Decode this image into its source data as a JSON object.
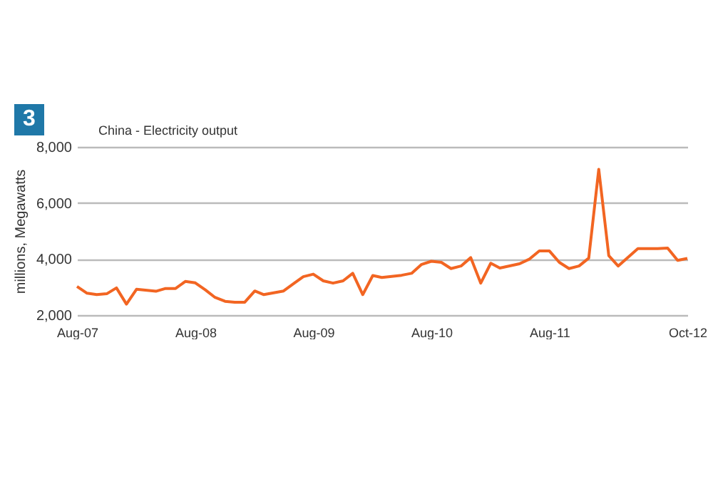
{
  "chart_data": {
    "type": "line",
    "annotations": [
      "3"
    ],
    "ylabel": "millions, Megawatts",
    "x": [
      "2007-08",
      "2007-09",
      "2007-10",
      "2007-11",
      "2007-12",
      "2008-01",
      "2008-02",
      "2008-04",
      "2008-05",
      "2008-06",
      "2008-07",
      "2008-08",
      "2008-09",
      "2008-10",
      "2008-11",
      "2008-12",
      "2009-01",
      "2009-02",
      "2009-03",
      "2009-05",
      "2009-06",
      "2009-07",
      "2009-08",
      "2009-09",
      "2009-10",
      "2009-11",
      "2009-12",
      "2010-01",
      "2010-02",
      "2010-03",
      "2010-05",
      "2010-06",
      "2010-07",
      "2010-08",
      "2010-09",
      "2010-10",
      "2010-11",
      "2010-12",
      "2011-01",
      "2011-02",
      "2011-03",
      "2011-05",
      "2011-06",
      "2011-07",
      "2011-08",
      "2011-09",
      "2011-10",
      "2011-11",
      "2011-12",
      "2012-01",
      "2012-02",
      "2012-03",
      "2012-05",
      "2012-06",
      "2012-07",
      "2012-08",
      "2012-09",
      "2012-10"
    ],
    "series": [
      {
        "name": "China - Electricity output",
        "color": "#f26522",
        "values": [
          3020,
          2780,
          2730,
          2760,
          2970,
          2390,
          2920,
          2850,
          2950,
          2950,
          3200,
          3150,
          2900,
          2630,
          2490,
          2460,
          2460,
          2860,
          2730,
          2860,
          3120,
          3370,
          3460,
          3220,
          3140,
          3220,
          3490,
          2730,
          3410,
          3340,
          3420,
          3490,
          3800,
          3920,
          3880,
          3660,
          3750,
          4050,
          3140,
          3850,
          3680,
          3830,
          4000,
          4290,
          4290,
          3880,
          3660,
          3750,
          4030,
          7200,
          4120,
          3750,
          4370,
          4370,
          4370,
          4390,
          3950,
          4020
        ]
      }
    ],
    "xlim": [
      "2007-08",
      "2012-10"
    ],
    "xticks": [
      {
        "value": "2007-08",
        "label": "Aug-07"
      },
      {
        "value": "2008-08",
        "label": "Aug-08"
      },
      {
        "value": "2009-08",
        "label": "Aug-09"
      },
      {
        "value": "2010-08",
        "label": "Aug-10"
      },
      {
        "value": "2011-08",
        "label": "Aug-11"
      },
      {
        "value": "2012-10",
        "label": "Oct-12"
      }
    ],
    "ylim": [
      2000,
      8000
    ],
    "yticks": [
      {
        "value": 2000,
        "label": "2,000"
      },
      {
        "value": 4000,
        "label": "4,000"
      },
      {
        "value": 6000,
        "label": "6,000"
      },
      {
        "value": 8000,
        "label": "8,000"
      }
    ],
    "grid": "y",
    "legend": "top left",
    "marker": "none",
    "line_style": "solid"
  }
}
